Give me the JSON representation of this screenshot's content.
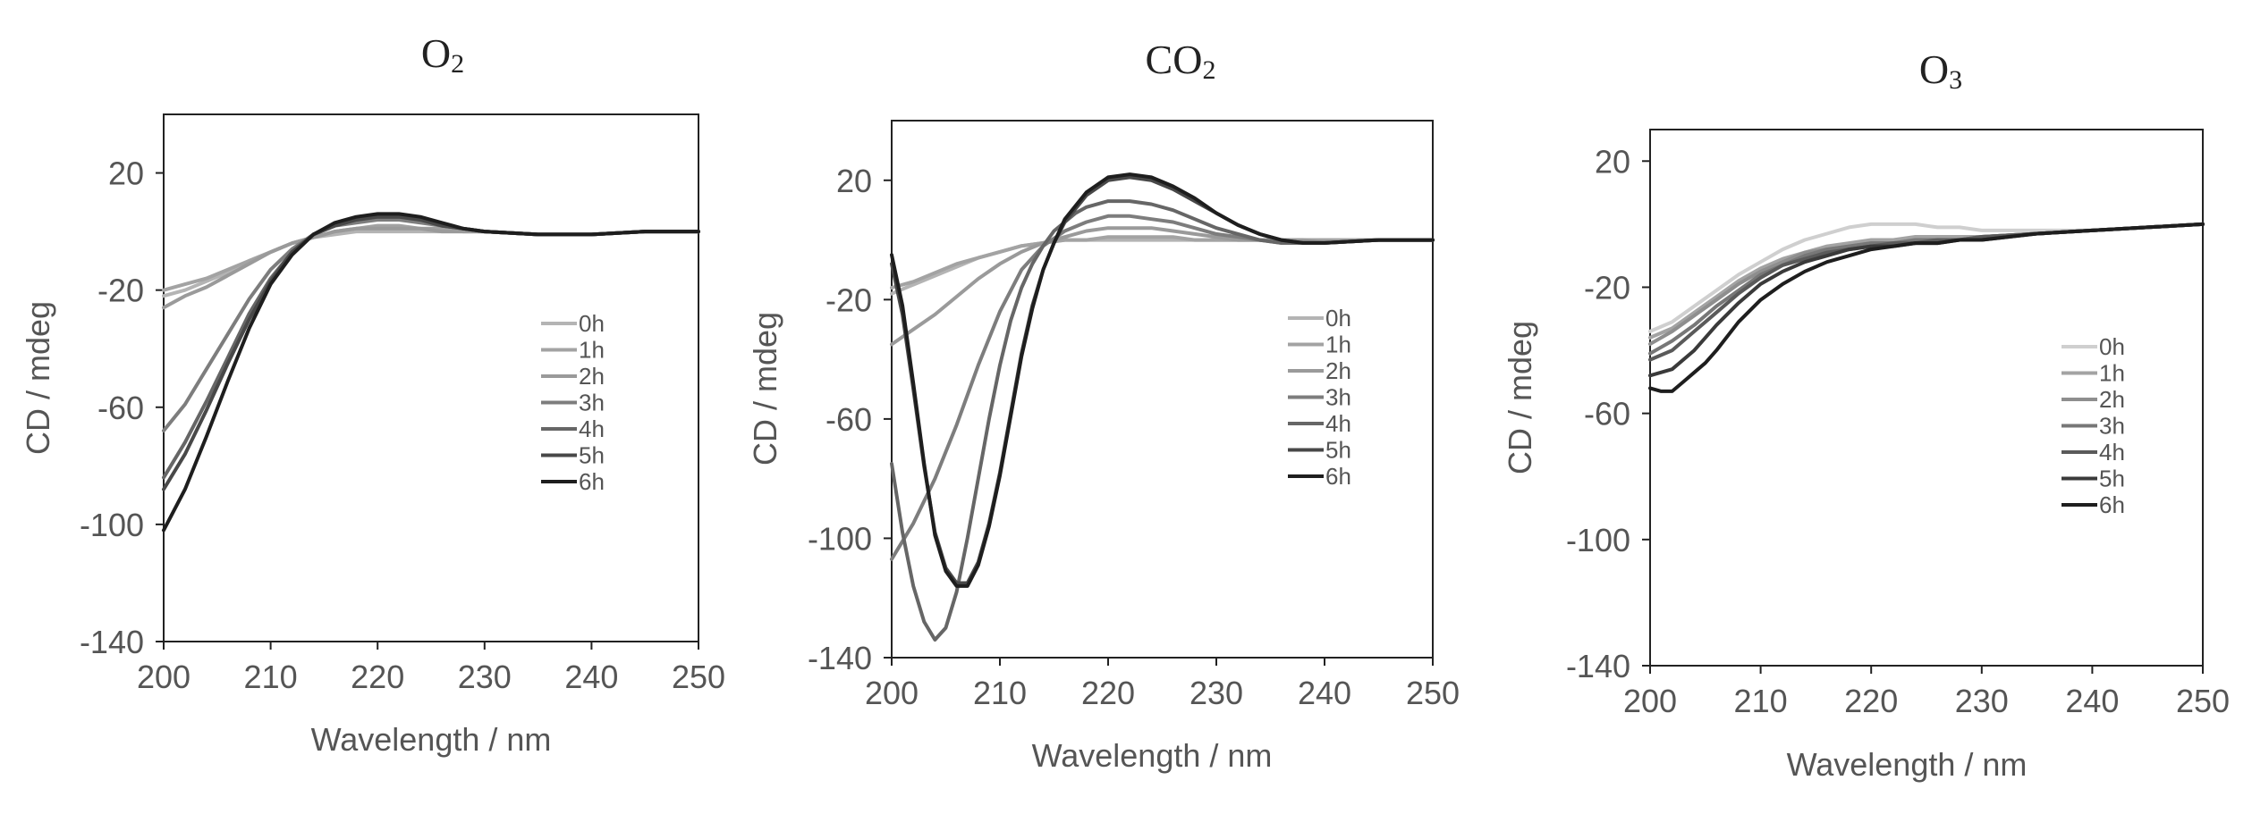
{
  "chart_data": [
    {
      "type": "line",
      "title": "O",
      "title_sub": "2",
      "xlabel": "Wavelength / nm",
      "ylabel": "CD / mdeg",
      "xlim": [
        200,
        250
      ],
      "ylim": [
        -140,
        40
      ],
      "xticks": [
        200,
        210,
        220,
        230,
        240,
        250
      ],
      "yticks": [
        20,
        -20,
        -60,
        -100,
        -140
      ],
      "legend": "center-right",
      "series": [
        {
          "name": "0h",
          "color": "#b4b4b4",
          "x": [
            200,
            202,
            204,
            206,
            208,
            210,
            212,
            214,
            216,
            218,
            220,
            222,
            224,
            226,
            228,
            230,
            235,
            240,
            245,
            250
          ],
          "y": [
            -22,
            -20,
            -17,
            -14,
            -10,
            -7,
            -4,
            -2,
            -1,
            0,
            0,
            0,
            0,
            0,
            0,
            0,
            -1,
            -1,
            0,
            0
          ]
        },
        {
          "name": "1h",
          "color": "#a3a3a3",
          "x": [
            200,
            202,
            204,
            206,
            208,
            210,
            212,
            214,
            216,
            218,
            220,
            222,
            224,
            226,
            228,
            230,
            235,
            240,
            245,
            250
          ],
          "y": [
            -20,
            -18,
            -16,
            -13,
            -10,
            -7,
            -4,
            -2,
            0,
            1,
            2,
            2,
            1,
            1,
            0,
            0,
            -1,
            -1,
            0,
            0
          ]
        },
        {
          "name": "2h",
          "color": "#9a9a9a",
          "x": [
            200,
            202,
            204,
            206,
            208,
            210,
            212,
            214,
            216,
            218,
            220,
            222,
            224,
            226,
            228,
            230,
            235,
            240,
            245,
            250
          ],
          "y": [
            -26,
            -22,
            -19,
            -15,
            -11,
            -7,
            -4,
            -2,
            0,
            1,
            1,
            1,
            1,
            0,
            0,
            0,
            -1,
            -1,
            0,
            0
          ]
        },
        {
          "name": "3h",
          "color": "#7d7d7d",
          "x": [
            200,
            202,
            204,
            206,
            208,
            210,
            212,
            214,
            216,
            218,
            220,
            222,
            224,
            226,
            228,
            230,
            235,
            240,
            245,
            250
          ],
          "y": [
            -68,
            -59,
            -47,
            -35,
            -23,
            -13,
            -6,
            -1,
            2,
            3,
            4,
            4,
            3,
            2,
            1,
            0,
            -1,
            -1,
            0,
            0
          ]
        },
        {
          "name": "4h",
          "color": "#666666",
          "x": [
            200,
            202,
            204,
            206,
            208,
            210,
            212,
            214,
            216,
            218,
            220,
            222,
            224,
            226,
            228,
            230,
            235,
            240,
            245,
            250
          ],
          "y": [
            -84,
            -72,
            -58,
            -43,
            -28,
            -16,
            -7,
            -1,
            2,
            4,
            5,
            5,
            4,
            2,
            1,
            0,
            -1,
            -1,
            0,
            0
          ]
        },
        {
          "name": "5h",
          "color": "#484848",
          "x": [
            200,
            202,
            204,
            206,
            208,
            210,
            212,
            214,
            216,
            218,
            220,
            222,
            224,
            226,
            228,
            230,
            235,
            240,
            245,
            250
          ],
          "y": [
            -88,
            -76,
            -61,
            -45,
            -30,
            -17,
            -7,
            -1,
            2,
            4,
            5,
            5,
            4,
            2,
            1,
            0,
            -1,
            -1,
            0,
            0
          ]
        },
        {
          "name": "6h",
          "color": "#1e1e1e",
          "x": [
            200,
            202,
            204,
            206,
            208,
            210,
            212,
            214,
            216,
            218,
            220,
            222,
            224,
            226,
            228,
            230,
            235,
            240,
            245,
            250
          ],
          "y": [
            -102,
            -88,
            -70,
            -51,
            -33,
            -18,
            -8,
            -1,
            3,
            5,
            6,
            6,
            5,
            3,
            1,
            0,
            -1,
            -1,
            0,
            0
          ]
        }
      ]
    },
    {
      "type": "line",
      "title": "CO",
      "title_sub": "2",
      "xlabel": "Wavelength / nm",
      "ylabel": "CD / mdeg",
      "xlim": [
        200,
        250
      ],
      "ylim": [
        -140,
        40
      ],
      "xticks": [
        200,
        210,
        220,
        230,
        240,
        250
      ],
      "yticks": [
        20,
        -20,
        -60,
        -100,
        -140
      ],
      "legend": "center-right",
      "series": [
        {
          "name": "0h",
          "color": "#b4b4b4",
          "x": [
            200,
            202,
            204,
            206,
            208,
            210,
            212,
            214,
            216,
            218,
            220,
            222,
            224,
            226,
            228,
            230,
            232,
            234,
            236,
            238,
            240,
            245,
            250
          ],
          "y": [
            -18,
            -15,
            -12,
            -9,
            -6,
            -4,
            -2,
            -1,
            0,
            0,
            0,
            0,
            0,
            0,
            0,
            0,
            0,
            0,
            0,
            0,
            0,
            0,
            0
          ]
        },
        {
          "name": "1h",
          "color": "#a3a3a3",
          "x": [
            200,
            202,
            204,
            206,
            208,
            210,
            212,
            214,
            216,
            218,
            220,
            222,
            224,
            226,
            228,
            230,
            232,
            234,
            236,
            238,
            240,
            245,
            250
          ],
          "y": [
            -16,
            -14,
            -11,
            -8,
            -6,
            -4,
            -2,
            -1,
            0,
            0,
            1,
            1,
            1,
            1,
            0,
            0,
            0,
            0,
            0,
            0,
            0,
            0,
            0
          ]
        },
        {
          "name": "2h",
          "color": "#9a9a9a",
          "x": [
            200,
            202,
            204,
            206,
            208,
            210,
            212,
            214,
            216,
            218,
            220,
            222,
            224,
            226,
            228,
            230,
            232,
            234,
            236,
            238,
            240,
            245,
            250
          ],
          "y": [
            -35,
            -30,
            -25,
            -19,
            -13,
            -8,
            -4,
            -1,
            1,
            3,
            4,
            4,
            4,
            3,
            2,
            1,
            0,
            0,
            0,
            0,
            -1,
            0,
            0
          ]
        },
        {
          "name": "3h",
          "color": "#7d7d7d",
          "x": [
            200,
            202,
            204,
            206,
            208,
            210,
            212,
            214,
            216,
            218,
            220,
            222,
            224,
            226,
            228,
            230,
            232,
            234,
            236,
            238,
            240,
            245,
            250
          ],
          "y": [
            -107,
            -95,
            -80,
            -62,
            -42,
            -24,
            -10,
            -2,
            3,
            6,
            8,
            8,
            7,
            6,
            4,
            2,
            1,
            0,
            -1,
            -1,
            -1,
            0,
            0
          ]
        },
        {
          "name": "4h",
          "color": "#666666",
          "x": [
            200,
            201,
            202,
            203,
            204,
            205,
            206,
            207,
            208,
            209,
            210,
            211,
            212,
            213,
            214,
            215,
            216,
            217,
            218,
            220,
            222,
            224,
            226,
            228,
            230,
            232,
            234,
            236,
            238,
            240,
            245,
            250
          ],
          "y": [
            -75,
            -98,
            -116,
            -128,
            -134,
            -130,
            -118,
            -100,
            -80,
            -60,
            -42,
            -27,
            -16,
            -8,
            -2,
            3,
            6,
            9,
            11,
            13,
            13,
            12,
            10,
            7,
            4,
            2,
            0,
            -1,
            -1,
            -1,
            0,
            0
          ]
        },
        {
          "name": "5h",
          "color": "#484848",
          "x": [
            200,
            201,
            202,
            203,
            204,
            205,
            206,
            207,
            208,
            209,
            210,
            211,
            212,
            213,
            214,
            215,
            216,
            218,
            220,
            222,
            224,
            226,
            228,
            230,
            232,
            234,
            236,
            238,
            240,
            245,
            250
          ],
          "y": [
            -8,
            -25,
            -50,
            -76,
            -98,
            -110,
            -115,
            -115,
            -108,
            -95,
            -78,
            -58,
            -38,
            -22,
            -10,
            -1,
            6,
            15,
            20,
            21,
            20,
            17,
            13,
            9,
            5,
            2,
            0,
            -1,
            -1,
            0,
            0
          ]
        },
        {
          "name": "6h",
          "color": "#1e1e1e",
          "x": [
            200,
            201,
            202,
            203,
            204,
            205,
            206,
            207,
            208,
            209,
            210,
            211,
            212,
            213,
            214,
            215,
            216,
            218,
            220,
            222,
            224,
            226,
            228,
            230,
            232,
            234,
            236,
            238,
            240,
            245,
            250
          ],
          "y": [
            -5,
            -22,
            -48,
            -75,
            -99,
            -111,
            -116,
            -116,
            -109,
            -96,
            -79,
            -59,
            -39,
            -23,
            -10,
            -1,
            7,
            16,
            21,
            22,
            21,
            18,
            14,
            9,
            5,
            2,
            0,
            -1,
            -1,
            0,
            0
          ]
        }
      ]
    },
    {
      "type": "line",
      "title": "O",
      "title_sub": "3",
      "xlabel": "Wavelength / nm",
      "ylabel": "CD / mdeg",
      "xlim": [
        200,
        250
      ],
      "ylim": [
        -140,
        30
      ],
      "xticks": [
        200,
        210,
        220,
        230,
        240,
        250
      ],
      "yticks": [
        20,
        -20,
        -60,
        -100,
        -140
      ],
      "legend": "center-right",
      "series": [
        {
          "name": "0h",
          "color": "#cfcfcf",
          "x": [
            200,
            202,
            204,
            206,
            208,
            210,
            212,
            214,
            216,
            218,
            220,
            222,
            224,
            226,
            228,
            230,
            235,
            240,
            245,
            250
          ],
          "y": [
            -34,
            -31,
            -26,
            -21,
            -16,
            -12,
            -8,
            -5,
            -3,
            -1,
            0,
            0,
            0,
            -1,
            -1,
            -2,
            -2,
            -2,
            -1,
            0
          ]
        },
        {
          "name": "1h",
          "color": "#a3a3a3",
          "x": [
            200,
            202,
            204,
            206,
            208,
            210,
            212,
            214,
            216,
            218,
            220,
            222,
            224,
            226,
            228,
            230,
            235,
            240,
            245,
            250
          ],
          "y": [
            -36,
            -33,
            -28,
            -23,
            -18,
            -14,
            -11,
            -9,
            -7,
            -6,
            -5,
            -5,
            -4,
            -4,
            -4,
            -4,
            -3,
            -2,
            -1,
            0
          ]
        },
        {
          "name": "2h",
          "color": "#8e8e8e",
          "x": [
            200,
            202,
            204,
            206,
            208,
            210,
            212,
            214,
            216,
            218,
            220,
            222,
            224,
            226,
            228,
            230,
            235,
            240,
            245,
            250
          ],
          "y": [
            -38,
            -34,
            -29,
            -24,
            -19,
            -15,
            -12,
            -9,
            -8,
            -7,
            -6,
            -6,
            -5,
            -5,
            -5,
            -4,
            -3,
            -2,
            -1,
            0
          ]
        },
        {
          "name": "3h",
          "color": "#777777",
          "x": [
            200,
            202,
            204,
            206,
            208,
            210,
            212,
            214,
            216,
            218,
            220,
            222,
            224,
            226,
            228,
            230,
            235,
            240,
            245,
            250
          ],
          "y": [
            -41,
            -37,
            -32,
            -26,
            -21,
            -16,
            -13,
            -10,
            -8,
            -7,
            -6,
            -6,
            -5,
            -5,
            -5,
            -4,
            -3,
            -2,
            -1,
            0
          ]
        },
        {
          "name": "4h",
          "color": "#5a5a5a",
          "x": [
            200,
            202,
            204,
            206,
            208,
            210,
            212,
            214,
            216,
            218,
            220,
            222,
            224,
            226,
            228,
            230,
            235,
            240,
            245,
            250
          ],
          "y": [
            -43,
            -40,
            -34,
            -28,
            -22,
            -17,
            -13,
            -11,
            -9,
            -8,
            -7,
            -6,
            -6,
            -5,
            -5,
            -4,
            -3,
            -2,
            -1,
            0
          ]
        },
        {
          "name": "5h",
          "color": "#3a3a3a",
          "x": [
            200,
            202,
            204,
            206,
            208,
            210,
            212,
            214,
            216,
            218,
            220,
            222,
            224,
            226,
            228,
            230,
            235,
            240,
            245,
            250
          ],
          "y": [
            -48,
            -46,
            -40,
            -32,
            -25,
            -19,
            -15,
            -12,
            -10,
            -8,
            -7,
            -7,
            -6,
            -6,
            -5,
            -5,
            -3,
            -2,
            -1,
            0
          ]
        },
        {
          "name": "6h",
          "color": "#1e1e1e",
          "x": [
            200,
            201,
            202,
            203,
            204,
            205,
            206,
            208,
            210,
            212,
            214,
            216,
            218,
            220,
            222,
            224,
            226,
            228,
            230,
            235,
            240,
            245,
            250
          ],
          "y": [
            -52,
            -53,
            -53,
            -50,
            -47,
            -44,
            -40,
            -31,
            -24,
            -19,
            -15,
            -12,
            -10,
            -8,
            -7,
            -6,
            -6,
            -5,
            -5,
            -3,
            -2,
            -1,
            0
          ]
        }
      ]
    }
  ]
}
